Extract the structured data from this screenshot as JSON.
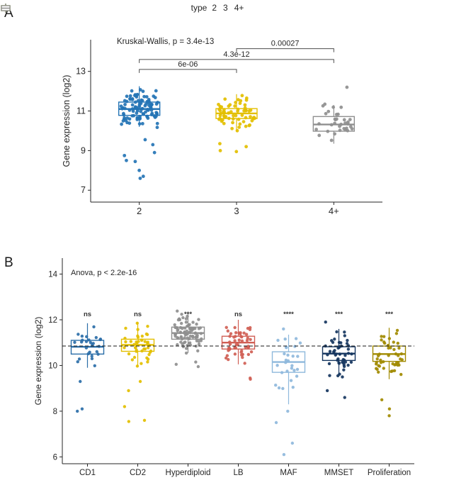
{
  "figure": {
    "panels": [
      {
        "label": "A"
      },
      {
        "label": "B"
      }
    ],
    "legend": {
      "title": "type",
      "items": [
        {
          "label": "2",
          "color": "#2474b5"
        },
        {
          "label": "3",
          "color": "#e3bf00"
        },
        {
          "label": "4+",
          "color": "#8f8f8f"
        }
      ]
    }
  },
  "chart_data": [
    {
      "type": "boxplot-jitter",
      "panel": "A",
      "annotation": "Kruskal-Wallis, p = 3.4e-13",
      "ylabel": "Gene expression (log2)",
      "ylim": [
        6.4,
        14.6
      ],
      "yticks": [
        7,
        9,
        11,
        13
      ],
      "categories": [
        "2",
        "3",
        "4+"
      ],
      "legend_title": "type",
      "grid": false,
      "groups": [
        {
          "label": "2",
          "color": "#2474b5",
          "n": 105,
          "median": 11.1,
          "q1": 10.78,
          "q3": 11.45,
          "whisker_low": 10.2,
          "whisker_high": 12.25,
          "outliers": [
            9.55,
            9.3,
            8.9,
            8.75,
            8.5,
            8.45,
            8.0,
            7.7,
            7.6
          ]
        },
        {
          "label": "3",
          "color": "#e3bf00",
          "n": 62,
          "median": 10.88,
          "q1": 10.62,
          "q3": 11.12,
          "whisker_low": 9.95,
          "whisker_high": 11.85,
          "outliers": [
            9.35,
            9.2,
            9.0,
            8.95
          ]
        },
        {
          "label": "4+",
          "color": "#8f8f8f",
          "n": 33,
          "median": 10.32,
          "q1": 9.98,
          "q3": 10.72,
          "whisker_low": 9.35,
          "whisker_high": 11.3,
          "outliers": [
            12.2
          ]
        }
      ],
      "comparisons": [
        {
          "a": 0,
          "b": 1,
          "label": "6e-06",
          "y": 13.1
        },
        {
          "a": 0,
          "b": 2,
          "label": "4.3e-12",
          "y": 13.6
        },
        {
          "a": 1,
          "b": 2,
          "label": "0.00027",
          "y": 14.15
        }
      ]
    },
    {
      "type": "boxplot-jitter",
      "panel": "B",
      "annotation": "Anova, p < 2.2e-16",
      "ylabel": "Gene expression (log2)",
      "ylim": [
        5.7,
        14.7
      ],
      "yticks": [
        6,
        8,
        10,
        12,
        14
      ],
      "dashed_line": 10.85,
      "sig_y": 12.15,
      "grid": false,
      "categories": [
        "CD1",
        "CD2",
        "Hyperdiploid",
        "LB",
        "MAF",
        "MMSET",
        "Proliferation"
      ],
      "groups": [
        {
          "label": "CD1",
          "color": "#2b6ea8",
          "sig": "ns",
          "n": 26,
          "median": 10.82,
          "q1": 10.5,
          "q3": 11.1,
          "whisker_low": 9.9,
          "whisker_high": 11.85,
          "outliers": [
            9.3,
            8.1,
            8.0
          ]
        },
        {
          "label": "CD2",
          "color": "#e3bf00",
          "sig": "ns",
          "n": 42,
          "median": 10.9,
          "q1": 10.62,
          "q3": 11.15,
          "whisker_low": 9.95,
          "whisker_high": 11.9,
          "outliers": [
            9.3,
            8.9,
            8.2,
            7.6,
            7.55
          ]
        },
        {
          "label": "Hyperdiploid",
          "color": "#8f8f8f",
          "sig": "***",
          "n": 85,
          "median": 11.42,
          "q1": 11.15,
          "q3": 11.68,
          "whisker_low": 10.55,
          "whisker_high": 12.3,
          "outliers": [
            10.15,
            10.05,
            9.95
          ]
        },
        {
          "label": "LB",
          "color": "#d05f55",
          "sig": "ns",
          "n": 52,
          "median": 11.0,
          "q1": 10.72,
          "q3": 11.28,
          "whisker_low": 10.05,
          "whisker_high": 12.0,
          "outliers": [
            9.45,
            9.4
          ]
        },
        {
          "label": "MAF",
          "color": "#8fb9dc",
          "sig": "****",
          "n": 27,
          "median": 10.15,
          "q1": 9.7,
          "q3": 10.6,
          "whisker_low": 8.3,
          "whisker_high": 11.35,
          "outliers": [
            11.6,
            8.0,
            7.5,
            6.6,
            6.1
          ]
        },
        {
          "label": "MMSET",
          "color": "#16365f",
          "sig": "***",
          "n": 48,
          "median": 10.52,
          "q1": 10.22,
          "q3": 10.82,
          "whisker_low": 9.55,
          "whisker_high": 11.6,
          "outliers": [
            11.9,
            8.9,
            8.6
          ]
        },
        {
          "label": "Proliferation",
          "color": "#a18a00",
          "sig": "***",
          "n": 46,
          "median": 10.5,
          "q1": 10.18,
          "q3": 10.85,
          "whisker_low": 9.4,
          "whisker_high": 11.65,
          "outliers": [
            8.5,
            8.1,
            7.8
          ]
        }
      ]
    }
  ]
}
